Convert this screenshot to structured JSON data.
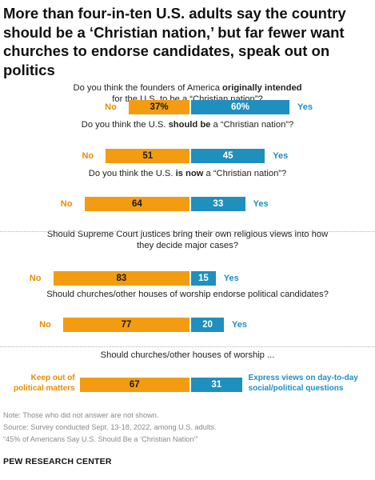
{
  "title": "More than four-in-ten U.S. adults say the country should be a ‘Christian nation,’ but far fewer want churches to endorse candidates, speak out on politics",
  "colors": {
    "no": "#f39c12",
    "yes": "#1f8fbe"
  },
  "chart_data": {
    "type": "bar",
    "orientation": "horizontal-diverging",
    "questions": [
      {
        "text_pre": "Do you think the founders of America ",
        "text_bold": "originally intended",
        "text_post": " for the U.S. to be a “Christian nation”?",
        "no_label": "No",
        "yes_label": "Yes",
        "no": 37,
        "yes": 60,
        "no_text": "37%",
        "yes_text": "60%"
      },
      {
        "text_pre": "Do you think the U.S. ",
        "text_bold": "should be",
        "text_post": " a “Christian nation”?",
        "no_label": "No",
        "yes_label": "Yes",
        "no": 51,
        "yes": 45,
        "no_text": "51",
        "yes_text": "45"
      },
      {
        "text_pre": "Do you think the U.S. ",
        "text_bold": "is now",
        "text_post": " a “Christian nation”?",
        "no_label": "No",
        "yes_label": "Yes",
        "no": 64,
        "yes": 33,
        "no_text": "64",
        "yes_text": "33"
      },
      {
        "text_pre": "Should Supreme Court justices bring their own religious views into how they decide major cases?",
        "text_bold": "",
        "text_post": "",
        "no_label": "No",
        "yes_label": "Yes",
        "no": 83,
        "yes": 15,
        "no_text": "83",
        "yes_text": "15"
      },
      {
        "text_pre": "Should churches/other houses of worship endorse political candidates?",
        "text_bold": "",
        "text_post": "",
        "no_label": "No",
        "yes_label": "Yes",
        "no": 77,
        "yes": 20,
        "no_text": "77",
        "yes_text": "20"
      },
      {
        "text_pre": "Should churches/other houses of worship ...",
        "text_bold": "",
        "text_post": "",
        "no_label": "Keep out of political matters",
        "yes_label": "Express views on day-to-day social/political questions",
        "no": 67,
        "yes": 31,
        "no_text": "67",
        "yes_text": "31"
      }
    ]
  },
  "notes": [
    "Note: Those who did not answer are not shown.",
    "Source: Survey conducted Sept. 13-18, 2022, among U.S. adults.",
    "“45% of Americans Say U.S. Should Be a ‘Christian Nation’”"
  ],
  "brand": "PEW RESEARCH CENTER"
}
